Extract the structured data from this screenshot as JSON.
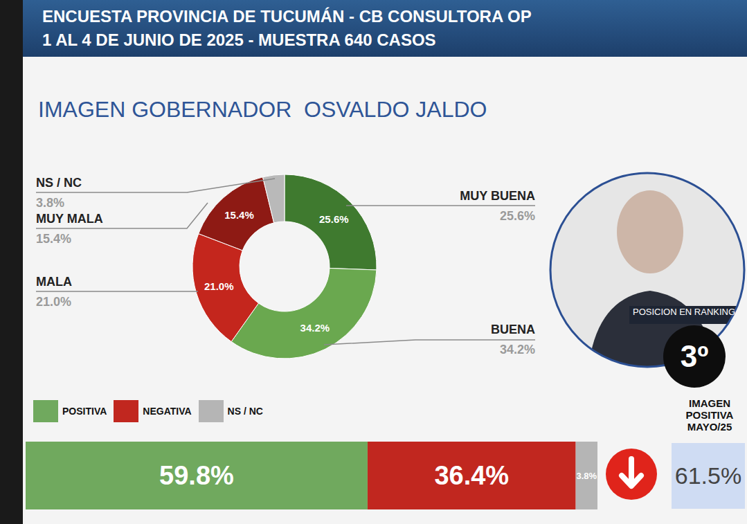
{
  "header": {
    "title": "ENCUESTA PROVINCIA DE TUCUMÁN - CB CONSULTORA OP",
    "subtitle": "1 AL 4 DE JUNIO DE 2025 - MUESTRA 640 CASOS"
  },
  "chart_data": [
    {
      "type": "pie",
      "title": "IMAGEN GOBERNADOR  OSVALDO JALDO",
      "categories": [
        "MUY BUENA",
        "BUENA",
        "MALA",
        "MUY MALA",
        "NS / NC"
      ],
      "values": [
        25.6,
        34.2,
        21.0,
        15.4,
        3.8
      ],
      "value_labels": [
        "25.6%",
        "34.2%",
        "21.0%",
        "15.4%",
        "3.8%"
      ],
      "colors": [
        "#3f7a2f",
        "#6aa84f",
        "#c4261d",
        "#8e1a14",
        "#b9b9b9"
      ],
      "data_labels": true
    },
    {
      "type": "bar",
      "orientation": "horizontal",
      "stacked": true,
      "categories": [
        null
      ],
      "xlim": [
        0,
        100
      ],
      "tick_labels": false,
      "legend": "top left",
      "data_labels": true,
      "series": [
        {
          "name": "POSITIVA",
          "color": "#70a95e",
          "values": [
            59.8
          ],
          "value_labels": [
            "59.8%"
          ]
        },
        {
          "name": "NEGATIVA",
          "color": "#c1271f",
          "values": [
            36.4
          ],
          "value_labels": [
            "36.4%"
          ]
        },
        {
          "name": "NS / NC",
          "color": "#b5b5b5",
          "values": [
            3.8
          ],
          "value_labels": [
            "3.8%"
          ]
        }
      ]
    }
  ],
  "ranking": {
    "label": "POSICION EN RANKING",
    "value": "3º"
  },
  "previous": {
    "label": "IMAGEN POSITIVA MAYO/25",
    "value": 61.5,
    "value_label": "61.5%"
  }
}
